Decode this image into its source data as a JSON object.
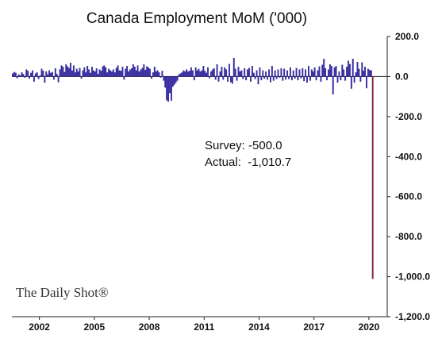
{
  "chart_data": {
    "type": "bar",
    "title": "Canada Employment MoM ('000)",
    "xlabel": "",
    "ylabel": "",
    "ylim": [
      -1200,
      200
    ],
    "y_ticks": [
      200,
      0,
      -200,
      -400,
      -600,
      -800,
      -1000,
      -1200
    ],
    "y_tick_labels": [
      "200.0",
      "0.0",
      "-200.0",
      "-400.0",
      "-600.0",
      "-800.0",
      "-1,000.0",
      "-1,200.0"
    ],
    "x_tick_labels": [
      "2002",
      "2005",
      "2008",
      "2011",
      "2014",
      "2017",
      "2020"
    ],
    "x_tick_years": [
      2002,
      2005,
      2008,
      2011,
      2014,
      2017,
      2020
    ],
    "x_start": "2000-07",
    "x_end": "2020-12",
    "series": [
      {
        "color": "#3a2bb0",
        "x": [
          "2000-07",
          "2000-08",
          "2000-09",
          "2000-10",
          "2000-11",
          "2000-12",
          "2001-01",
          "2001-02",
          "2001-03",
          "2001-04",
          "2001-05",
          "2001-06",
          "2001-07",
          "2001-08",
          "2001-09",
          "2001-10",
          "2001-11",
          "2001-12",
          "2002-01",
          "2002-02",
          "2002-03",
          "2002-04",
          "2002-05",
          "2002-06",
          "2002-07",
          "2002-08",
          "2002-09",
          "2002-10",
          "2002-11",
          "2002-12",
          "2003-01",
          "2003-02",
          "2003-03",
          "2003-04",
          "2003-05",
          "2003-06",
          "2003-07",
          "2003-08",
          "2003-09",
          "2003-10",
          "2003-11",
          "2003-12",
          "2004-01",
          "2004-02",
          "2004-03",
          "2004-04",
          "2004-05",
          "2004-06",
          "2004-07",
          "2004-08",
          "2004-09",
          "2004-10",
          "2004-11",
          "2004-12",
          "2005-01",
          "2005-02",
          "2005-03",
          "2005-04",
          "2005-05",
          "2005-06",
          "2005-07",
          "2005-08",
          "2005-09",
          "2005-10",
          "2005-11",
          "2005-12",
          "2006-01",
          "2006-02",
          "2006-03",
          "2006-04",
          "2006-05",
          "2006-06",
          "2006-07",
          "2006-08",
          "2006-09",
          "2006-10",
          "2006-11",
          "2006-12",
          "2007-01",
          "2007-02",
          "2007-03",
          "2007-04",
          "2007-05",
          "2007-06",
          "2007-07",
          "2007-08",
          "2007-09",
          "2007-10",
          "2007-11",
          "2007-12",
          "2008-01",
          "2008-02",
          "2008-03",
          "2008-04",
          "2008-05",
          "2008-06",
          "2008-07",
          "2008-08",
          "2008-09",
          "2008-10",
          "2008-11",
          "2008-12",
          "2009-01",
          "2009-02",
          "2009-03",
          "2009-04",
          "2009-05",
          "2009-06",
          "2009-07",
          "2009-08",
          "2009-09",
          "2009-10",
          "2009-11",
          "2009-12",
          "2010-01",
          "2010-02",
          "2010-03",
          "2010-04",
          "2010-05",
          "2010-06",
          "2010-07",
          "2010-08",
          "2010-09",
          "2010-10",
          "2010-11",
          "2010-12",
          "2011-01",
          "2011-02",
          "2011-03",
          "2011-04",
          "2011-05",
          "2011-06",
          "2011-07",
          "2011-08",
          "2011-09",
          "2011-10",
          "2011-11",
          "2011-12",
          "2012-01",
          "2012-02",
          "2012-03",
          "2012-04",
          "2012-05",
          "2012-06",
          "2012-07",
          "2012-08",
          "2012-09",
          "2012-10",
          "2012-11",
          "2012-12",
          "2013-01",
          "2013-02",
          "2013-03",
          "2013-04",
          "2013-05",
          "2013-06",
          "2013-07",
          "2013-08",
          "2013-09",
          "2013-10",
          "2013-11",
          "2013-12",
          "2014-01",
          "2014-02",
          "2014-03",
          "2014-04",
          "2014-05",
          "2014-06",
          "2014-07",
          "2014-08",
          "2014-09",
          "2014-10",
          "2014-11",
          "2014-12",
          "2015-01",
          "2015-02",
          "2015-03",
          "2015-04",
          "2015-05",
          "2015-06",
          "2015-07",
          "2015-08",
          "2015-09",
          "2015-10",
          "2015-11",
          "2015-12",
          "2016-01",
          "2016-02",
          "2016-03",
          "2016-04",
          "2016-05",
          "2016-06",
          "2016-07",
          "2016-08",
          "2016-09",
          "2016-10",
          "2016-11",
          "2016-12",
          "2017-01",
          "2017-02",
          "2017-03",
          "2017-04",
          "2017-05",
          "2017-06",
          "2017-07",
          "2017-08",
          "2017-09",
          "2017-10",
          "2017-11",
          "2017-12",
          "2018-01",
          "2018-02",
          "2018-03",
          "2018-04",
          "2018-05",
          "2018-06",
          "2018-07",
          "2018-08",
          "2018-09",
          "2018-10",
          "2018-11",
          "2018-12",
          "2019-01",
          "2019-02",
          "2019-03",
          "2019-04",
          "2019-05",
          "2019-06",
          "2019-07",
          "2019-08",
          "2019-09",
          "2019-10",
          "2019-11",
          "2019-12",
          "2020-01",
          "2020-02"
        ],
        "values": [
          15,
          22,
          18,
          -8,
          10,
          5,
          20,
          12,
          -5,
          35,
          28,
          -10,
          18,
          30,
          -25,
          15,
          20,
          -12,
          5,
          38,
          28,
          -30,
          25,
          10,
          30,
          18,
          22,
          -15,
          40,
          12,
          -28,
          35,
          55,
          48,
          22,
          60,
          50,
          42,
          68,
          30,
          55,
          20,
          38,
          25,
          42,
          -10,
          30,
          45,
          20,
          52,
          35,
          18,
          48,
          30,
          25,
          40,
          12,
          35,
          28,
          50,
          55,
          45,
          20,
          38,
          30,
          25,
          35,
          20,
          42,
          55,
          30,
          28,
          48,
          -15,
          38,
          52,
          25,
          35,
          40,
          60,
          48,
          30,
          55,
          25,
          35,
          42,
          60,
          32,
          50,
          45,
          38,
          -10,
          20,
          48,
          25,
          30,
          20,
          -5,
          28,
          -20,
          -55,
          -118,
          -125,
          -82,
          -120,
          -50,
          -40,
          -30,
          -20,
          10,
          15,
          20,
          30,
          25,
          35,
          25,
          28,
          45,
          30,
          -18,
          45,
          30,
          38,
          25,
          30,
          52,
          28,
          18,
          45,
          -8,
          25,
          35,
          40,
          -15,
          60,
          -25,
          25,
          48,
          -15,
          45,
          35,
          -25,
          62,
          -28,
          -35,
          92,
          38,
          -20,
          48,
          25,
          30,
          -12,
          40,
          -18,
          35,
          42,
          -25,
          52,
          18,
          -12,
          30,
          -38,
          45,
          -18,
          30,
          -10,
          25,
          -15,
          35,
          -28,
          52,
          -20,
          30,
          -12,
          35,
          -5,
          40,
          -20,
          38,
          -15,
          30,
          -12,
          45,
          -18,
          30,
          -10,
          42,
          -18,
          35,
          -8,
          40,
          -22,
          35,
          -30,
          52,
          -20,
          35,
          25,
          45,
          -18,
          30,
          50,
          -25,
          58,
          88,
          40,
          -18,
          35,
          60,
          52,
          -88,
          45,
          52,
          -30,
          25,
          -18,
          58,
          35,
          -20,
          48,
          78,
          62,
          -60,
          88,
          -30,
          20,
          72,
          38,
          -25,
          70,
          28,
          48,
          -58,
          38,
          32,
          30
        ]
      },
      {
        "color": "#b0261c",
        "x": [
          "2020-03"
        ],
        "values": [
          -1010.7
        ]
      }
    ],
    "annotations": [
      "Survey: -500.0",
      "Actual:  -1,010.7"
    ],
    "grid": false,
    "legend": "none",
    "source": "The Daily Shot®"
  }
}
